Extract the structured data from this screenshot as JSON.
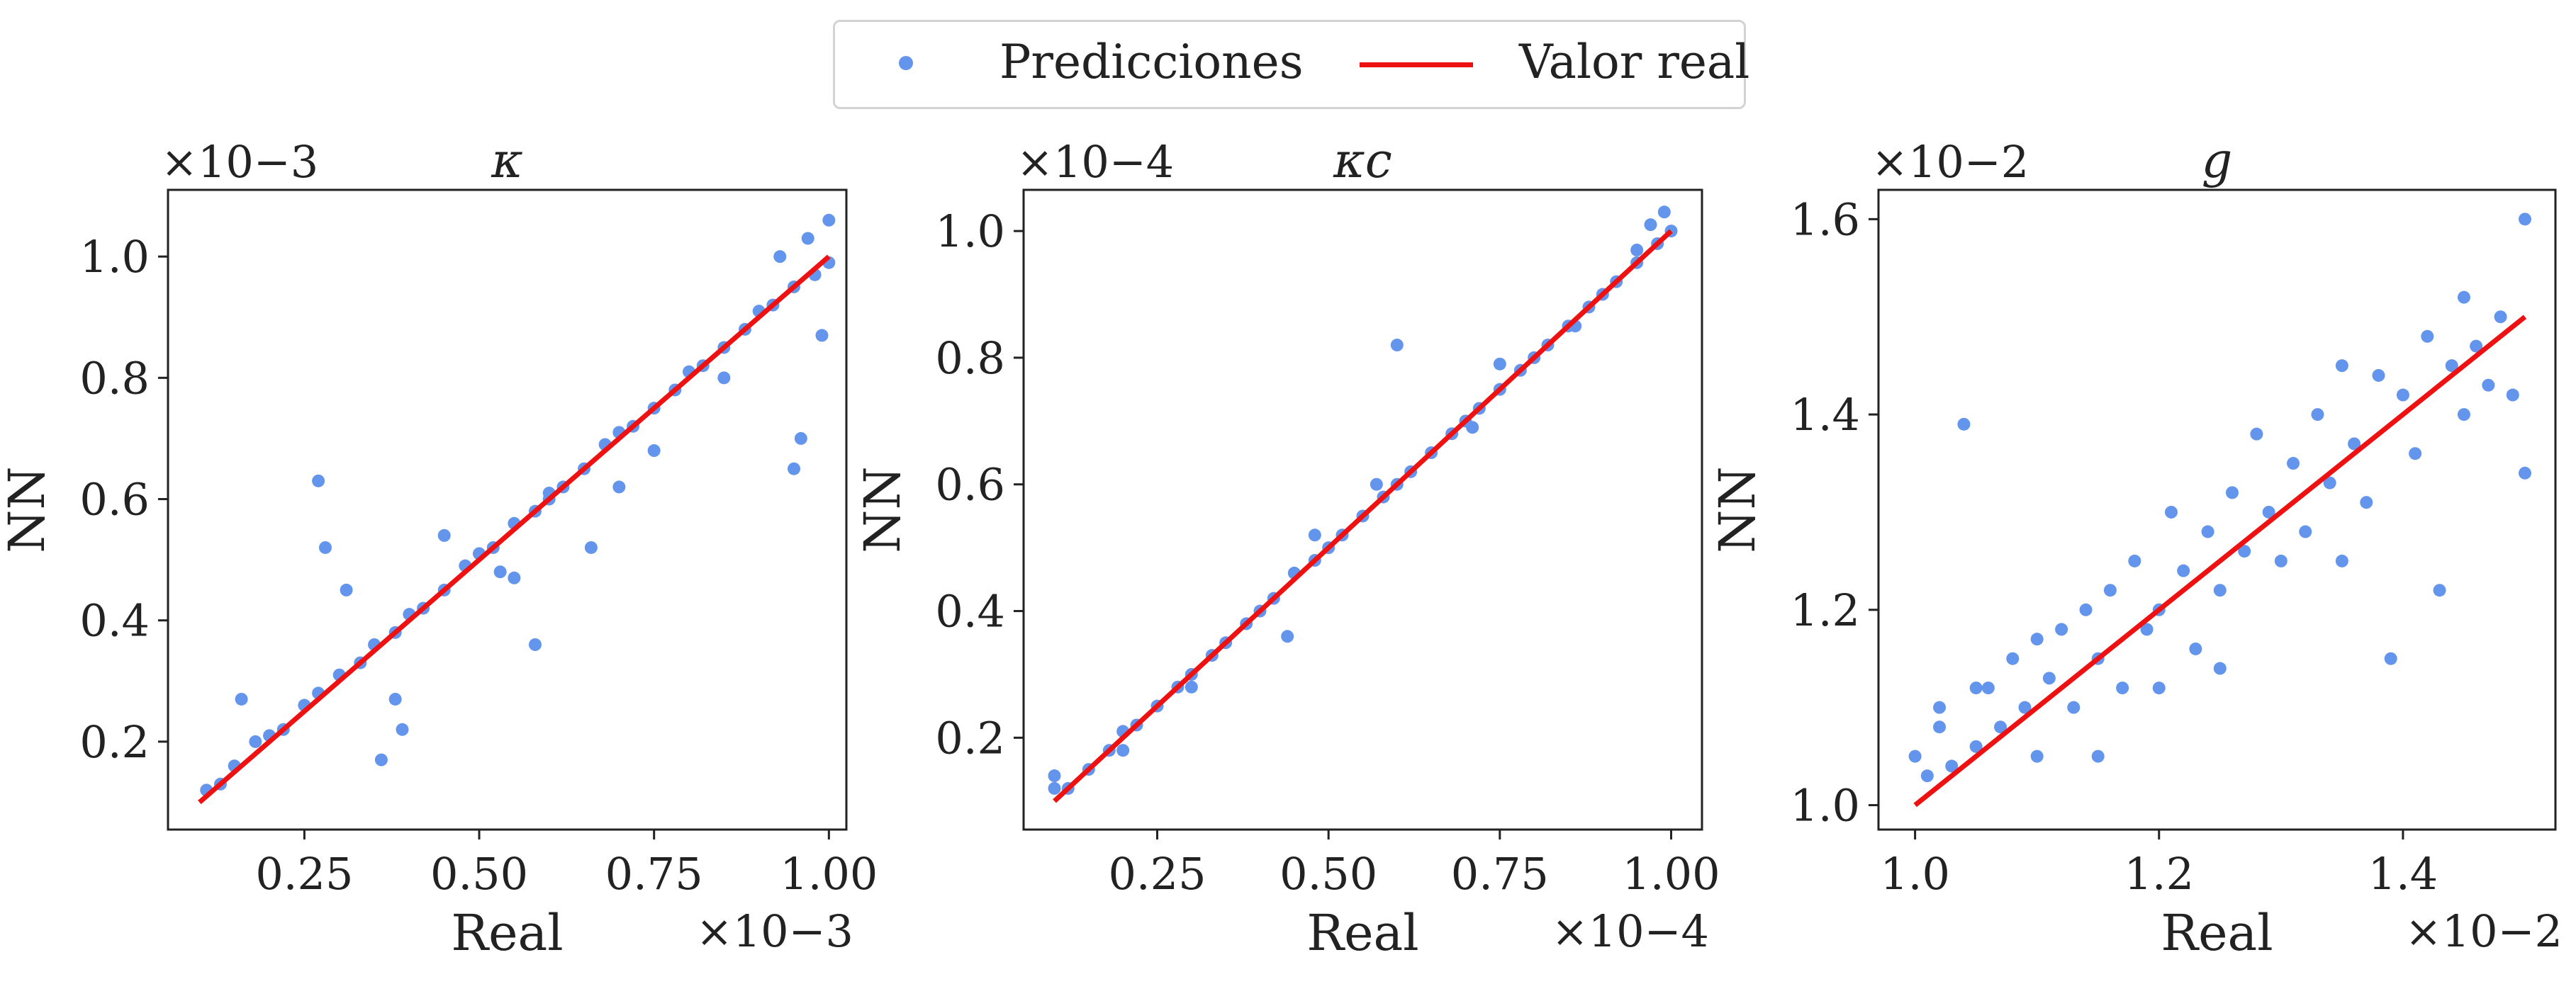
{
  "legend": {
    "points_label": "Predicciones",
    "line_label": "Valor real"
  },
  "colors": {
    "points": "#6495ed",
    "line": "#ee1111",
    "axes": "#222222"
  },
  "chart_data": [
    {
      "type": "scatter",
      "title": "κ",
      "xlabel": "Real",
      "ylabel": "NN",
      "x_offset_text": "×10−3",
      "y_offset_text": "×10−3",
      "xlim": [
        0.055,
        1.025
      ],
      "ylim": [
        0.055,
        1.11
      ],
      "xticks": [
        0.25,
        0.5,
        0.75,
        1.0
      ],
      "xtick_labels": [
        "0.25",
        "0.50",
        "0.75",
        "1.00"
      ],
      "yticks": [
        0.2,
        0.4,
        0.6,
        0.8,
        1.0
      ],
      "ytick_labels": [
        "0.2",
        "0.4",
        "0.6",
        "0.8",
        "1.0"
      ],
      "reference_line": {
        "x": [
          0.1,
          1.0
        ],
        "y": [
          0.1,
          1.0
        ]
      },
      "series": [
        {
          "name": "Predicciones",
          "points": [
            [
              0.11,
              0.12
            ],
            [
              0.13,
              0.13
            ],
            [
              0.15,
              0.16
            ],
            [
              0.18,
              0.2
            ],
            [
              0.2,
              0.21
            ],
            [
              0.22,
              0.22
            ],
            [
              0.25,
              0.26
            ],
            [
              0.27,
              0.28
            ],
            [
              0.3,
              0.31
            ],
            [
              0.33,
              0.33
            ],
            [
              0.35,
              0.36
            ],
            [
              0.38,
              0.38
            ],
            [
              0.4,
              0.41
            ],
            [
              0.42,
              0.42
            ],
            [
              0.45,
              0.45
            ],
            [
              0.48,
              0.49
            ],
            [
              0.5,
              0.51
            ],
            [
              0.52,
              0.52
            ],
            [
              0.55,
              0.56
            ],
            [
              0.58,
              0.58
            ],
            [
              0.6,
              0.61
            ],
            [
              0.62,
              0.62
            ],
            [
              0.65,
              0.65
            ],
            [
              0.68,
              0.69
            ],
            [
              0.7,
              0.71
            ],
            [
              0.72,
              0.72
            ],
            [
              0.75,
              0.75
            ],
            [
              0.78,
              0.78
            ],
            [
              0.8,
              0.81
            ],
            [
              0.82,
              0.82
            ],
            [
              0.85,
              0.85
            ],
            [
              0.88,
              0.88
            ],
            [
              0.9,
              0.91
            ],
            [
              0.92,
              0.92
            ],
            [
              0.95,
              0.95
            ],
            [
              0.98,
              0.97
            ],
            [
              1.0,
              0.99
            ],
            [
              0.16,
              0.27
            ],
            [
              0.27,
              0.63
            ],
            [
              0.28,
              0.52
            ],
            [
              0.31,
              0.45
            ],
            [
              0.36,
              0.17
            ],
            [
              0.38,
              0.27
            ],
            [
              0.39,
              0.22
            ],
            [
              0.45,
              0.54
            ],
            [
              0.53,
              0.48
            ],
            [
              0.55,
              0.47
            ],
            [
              0.58,
              0.36
            ],
            [
              0.66,
              0.52
            ],
            [
              0.7,
              0.62
            ],
            [
              0.75,
              0.68
            ],
            [
              0.85,
              0.8
            ],
            [
              0.95,
              0.65
            ],
            [
              0.96,
              0.7
            ],
            [
              0.99,
              0.87
            ],
            [
              1.0,
              1.06
            ],
            [
              0.97,
              1.03
            ],
            [
              0.93,
              1.0
            ],
            [
              0.5,
              0.51
            ],
            [
              0.6,
              0.6
            ]
          ]
        }
      ]
    },
    {
      "type": "scatter",
      "title": "κc",
      "xlabel": "Real",
      "ylabel": "NN",
      "x_offset_text": "×10−4",
      "y_offset_text": "×10−4",
      "xlim": [
        0.055,
        1.045
      ],
      "ylim": [
        0.055,
        1.065
      ],
      "xticks": [
        0.25,
        0.5,
        0.75,
        1.0
      ],
      "xtick_labels": [
        "0.25",
        "0.50",
        "0.75",
        "1.00"
      ],
      "yticks": [
        0.2,
        0.4,
        0.6,
        0.8,
        1.0
      ],
      "ytick_labels": [
        "0.2",
        "0.4",
        "0.6",
        "0.8",
        "1.0"
      ],
      "reference_line": {
        "x": [
          0.1,
          1.0
        ],
        "y": [
          0.1,
          1.0
        ]
      },
      "series": [
        {
          "name": "Predicciones",
          "points": [
            [
              0.1,
              0.12
            ],
            [
              0.12,
              0.12
            ],
            [
              0.15,
              0.15
            ],
            [
              0.18,
              0.18
            ],
            [
              0.2,
              0.21
            ],
            [
              0.22,
              0.22
            ],
            [
              0.25,
              0.25
            ],
            [
              0.28,
              0.28
            ],
            [
              0.3,
              0.3
            ],
            [
              0.33,
              0.33
            ],
            [
              0.35,
              0.35
            ],
            [
              0.38,
              0.38
            ],
            [
              0.4,
              0.4
            ],
            [
              0.42,
              0.42
            ],
            [
              0.45,
              0.46
            ],
            [
              0.48,
              0.48
            ],
            [
              0.5,
              0.5
            ],
            [
              0.52,
              0.52
            ],
            [
              0.55,
              0.55
            ],
            [
              0.58,
              0.58
            ],
            [
              0.6,
              0.6
            ],
            [
              0.62,
              0.62
            ],
            [
              0.65,
              0.65
            ],
            [
              0.68,
              0.68
            ],
            [
              0.7,
              0.7
            ],
            [
              0.72,
              0.72
            ],
            [
              0.75,
              0.75
            ],
            [
              0.78,
              0.78
            ],
            [
              0.8,
              0.8
            ],
            [
              0.82,
              0.82
            ],
            [
              0.85,
              0.85
            ],
            [
              0.88,
              0.88
            ],
            [
              0.9,
              0.9
            ],
            [
              0.92,
              0.92
            ],
            [
              0.95,
              0.95
            ],
            [
              0.98,
              0.98
            ],
            [
              1.0,
              1.0
            ],
            [
              0.1,
              0.14
            ],
            [
              0.44,
              0.36
            ],
            [
              0.48,
              0.52
            ],
            [
              0.6,
              0.82
            ],
            [
              0.75,
              0.79
            ],
            [
              0.95,
              0.97
            ],
            [
              0.97,
              1.01
            ],
            [
              0.99,
              1.03
            ],
            [
              0.2,
              0.18
            ],
            [
              0.3,
              0.28
            ],
            [
              0.57,
              0.6
            ],
            [
              0.71,
              0.69
            ],
            [
              0.86,
              0.85
            ]
          ]
        }
      ]
    },
    {
      "type": "scatter",
      "title": "g",
      "xlabel": "Real",
      "ylabel": "NN",
      "x_offset_text": "×10−2",
      "y_offset_text": "×10−2",
      "xlim": [
        0.97,
        1.525
      ],
      "ylim": [
        0.975,
        1.63
      ],
      "xticks": [
        1.0,
        1.2,
        1.4
      ],
      "xtick_labels": [
        "1.0",
        "1.2",
        "1.4"
      ],
      "yticks": [
        1.0,
        1.2,
        1.4,
        1.6
      ],
      "ytick_labels": [
        "1.0",
        "1.2",
        "1.4",
        "1.6"
      ],
      "reference_line": {
        "x": [
          1.0,
          1.5
        ],
        "y": [
          1.0,
          1.5
        ]
      },
      "series": [
        {
          "name": "Predicciones",
          "points": [
            [
              1.0,
              1.05
            ],
            [
              1.01,
              1.03
            ],
            [
              1.02,
              1.08
            ],
            [
              1.03,
              1.04
            ],
            [
              1.04,
              1.39
            ],
            [
              1.05,
              1.06
            ],
            [
              1.06,
              1.12
            ],
            [
              1.07,
              1.08
            ],
            [
              1.08,
              1.15
            ],
            [
              1.09,
              1.1
            ],
            [
              1.1,
              1.05
            ],
            [
              1.11,
              1.13
            ],
            [
              1.12,
              1.18
            ],
            [
              1.13,
              1.1
            ],
            [
              1.14,
              1.2
            ],
            [
              1.15,
              1.15
            ],
            [
              1.16,
              1.22
            ],
            [
              1.17,
              1.12
            ],
            [
              1.18,
              1.25
            ],
            [
              1.19,
              1.18
            ],
            [
              1.2,
              1.2
            ],
            [
              1.21,
              1.3
            ],
            [
              1.22,
              1.24
            ],
            [
              1.23,
              1.16
            ],
            [
              1.24,
              1.28
            ],
            [
              1.25,
              1.22
            ],
            [
              1.26,
              1.32
            ],
            [
              1.27,
              1.26
            ],
            [
              1.28,
              1.38
            ],
            [
              1.29,
              1.3
            ],
            [
              1.3,
              1.25
            ],
            [
              1.31,
              1.35
            ],
            [
              1.32,
              1.28
            ],
            [
              1.33,
              1.4
            ],
            [
              1.34,
              1.33
            ],
            [
              1.35,
              1.45
            ],
            [
              1.36,
              1.37
            ],
            [
              1.37,
              1.31
            ],
            [
              1.38,
              1.44
            ],
            [
              1.39,
              1.15
            ],
            [
              1.4,
              1.42
            ],
            [
              1.41,
              1.36
            ],
            [
              1.42,
              1.48
            ],
            [
              1.43,
              1.22
            ],
            [
              1.44,
              1.45
            ],
            [
              1.45,
              1.4
            ],
            [
              1.46,
              1.47
            ],
            [
              1.47,
              1.43
            ],
            [
              1.48,
              1.5
            ],
            [
              1.49,
              1.42
            ],
            [
              1.5,
              1.6
            ],
            [
              1.5,
              1.34
            ],
            [
              1.2,
              1.12
            ],
            [
              1.15,
              1.05
            ],
            [
              1.1,
              1.17
            ],
            [
              1.05,
              1.12
            ],
            [
              1.02,
              1.1
            ],
            [
              1.25,
              1.14
            ],
            [
              1.35,
              1.25
            ],
            [
              1.45,
              1.52
            ]
          ]
        }
      ]
    }
  ]
}
